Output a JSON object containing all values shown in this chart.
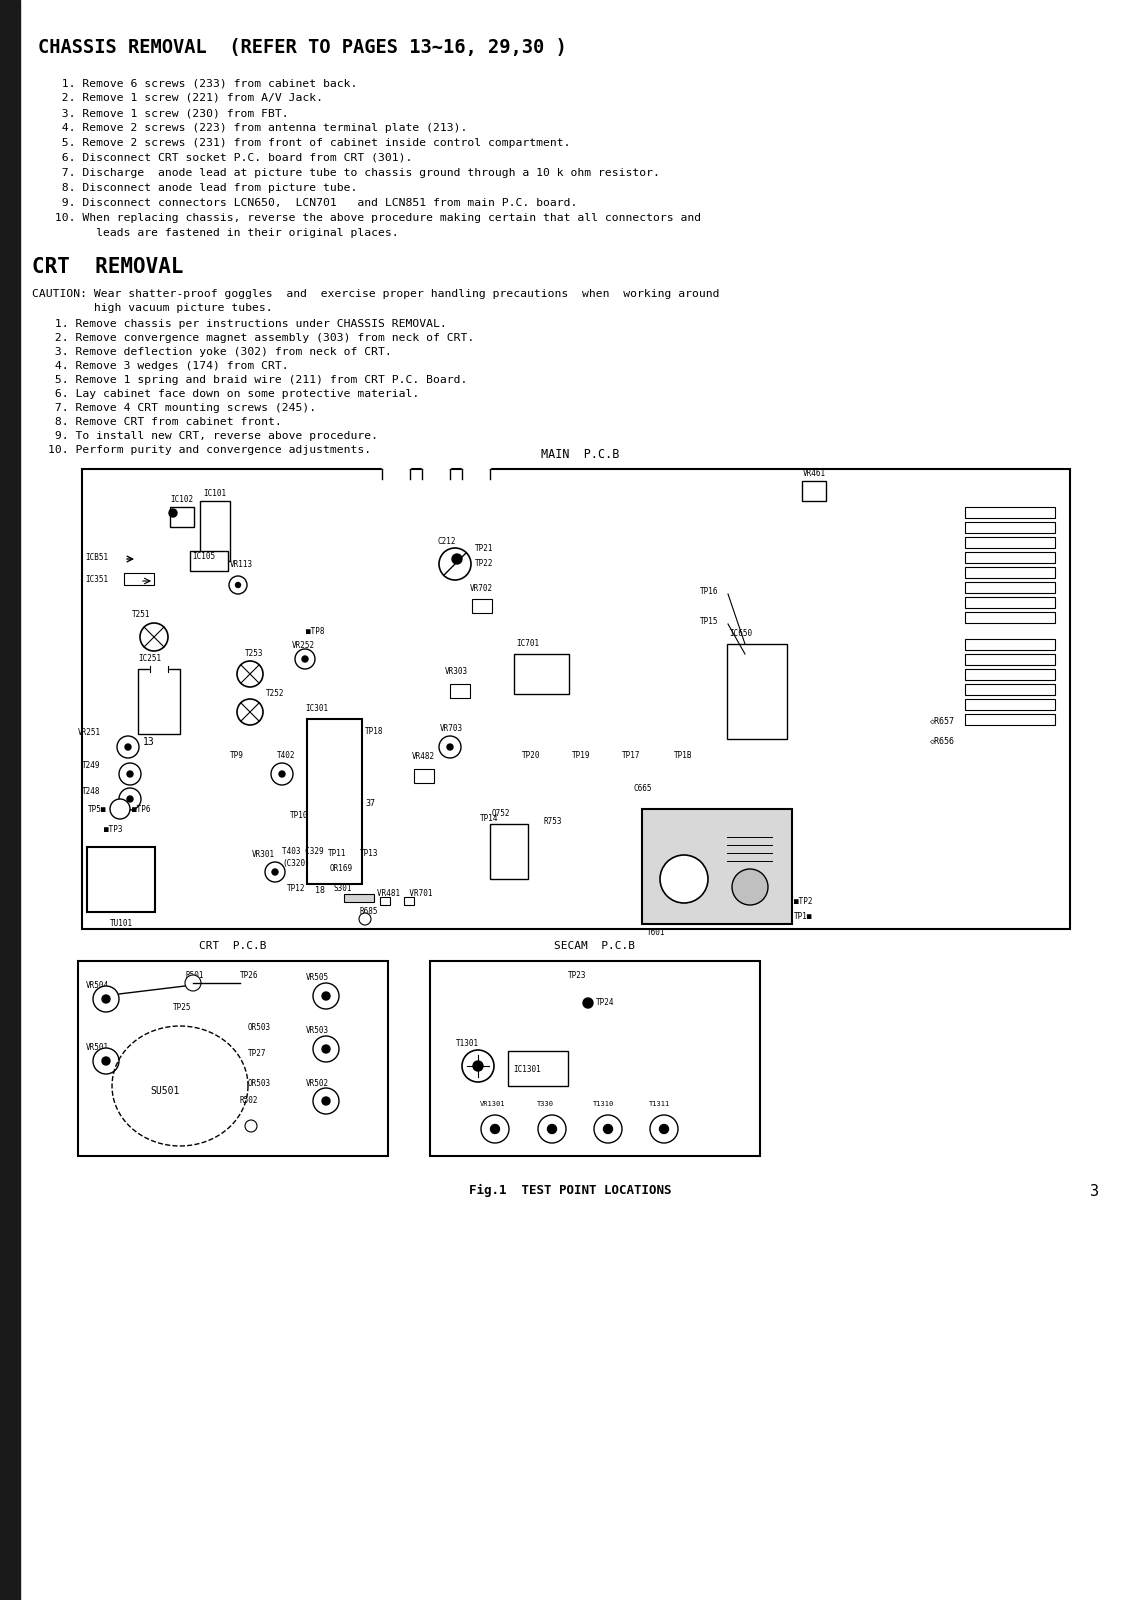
{
  "bg_color": "#ffffff",
  "left_bar_color": "#1a1a1a",
  "title1": "CHASSIS REMOVAL  (REFER TO PAGES 13~16, 29,30 )",
  "chassis_steps": [
    "  1. Remove 6 screws (233) from cabinet back.",
    "  2. Remove 1 screw (221) from A/V Jack.",
    "  3. Remove 1 screw (230) from FBT.",
    "  4. Remove 2 screws (223) from antenna terminal plate (213).",
    "  5. Remove 2 screws (231) from front of cabinet inside control compartment.",
    "  6. Disconnect CRT socket P.C. board from CRT (301).",
    "  7. Discharge  anode lead at picture tube to chassis ground through a 10 k ohm resistor.",
    "  8. Disconnect anode lead from picture tube.",
    "  9. Disconnect connectors LCN650,  LCN701   and LCN851 from main P.C. board.",
    " 10. When replacing chassis, reverse the above procedure making certain that all connectors and",
    "       leads are fastened in their original places."
  ],
  "title2": "CRT  REMOVAL",
  "caution_line1": "CAUTION: Wear shatter-proof goggles  and  exercise proper handling precautions  when  working around",
  "caution_line2": "         high vacuum picture tubes.",
  "crt_steps": [
    " 1. Remove chassis per instructions under CHASSIS REMOVAL.",
    " 2. Remove convergence magnet assembly (303) from neck of CRT.",
    " 3. Remove deflection yoke (302) from neck of CRT.",
    " 4. Remove 3 wedges (174) from CRT.",
    " 5. Remove 1 spring and braid wire (211) from CRT P.C. Board.",
    " 6. Lay cabinet face down on some protective material.",
    " 7. Remove 4 CRT mounting screws (245).",
    " 8. Remove CRT from cabinet front.",
    " 9. To install new CRT, reverse above procedure.",
    "10. Perform purity and convergence adjustments."
  ],
  "fig_caption": "Fig.1  TEST POINT LOCATIONS",
  "page_num": "3"
}
